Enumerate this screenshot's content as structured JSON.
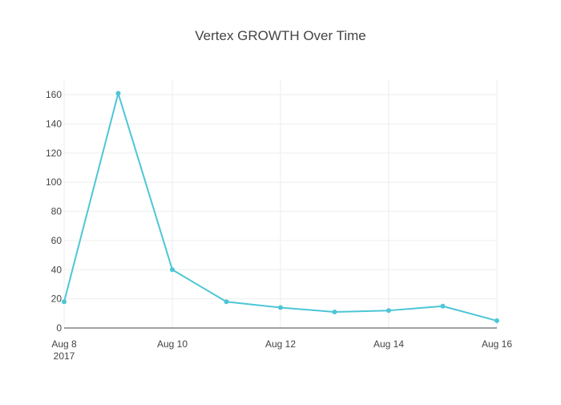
{
  "chart_data": {
    "type": "line",
    "title": "Vertex GROWTH Over Time",
    "xlabel": "",
    "ylabel": "",
    "x": [
      "2017-08-08",
      "2017-08-09",
      "2017-08-10",
      "2017-08-11",
      "2017-08-12",
      "2017-08-13",
      "2017-08-14",
      "2017-08-15",
      "2017-08-16"
    ],
    "series": [
      {
        "values": [
          18,
          161,
          40,
          18,
          14,
          11,
          12,
          15,
          5
        ],
        "color": "#4dc6d6"
      }
    ],
    "xlim": [
      "2017-08-08",
      "2017-08-16"
    ],
    "ylim": [
      0,
      170
    ],
    "x_ticks": [
      {
        "value": "2017-08-08",
        "label": "Aug 8",
        "sublabel": "2017"
      },
      {
        "value": "2017-08-10",
        "label": "Aug 10",
        "sublabel": ""
      },
      {
        "value": "2017-08-12",
        "label": "Aug 12",
        "sublabel": ""
      },
      {
        "value": "2017-08-14",
        "label": "Aug 14",
        "sublabel": ""
      },
      {
        "value": "2017-08-16",
        "label": "Aug 16",
        "sublabel": ""
      }
    ],
    "y_ticks": [
      0,
      20,
      40,
      60,
      80,
      100,
      120,
      140,
      160
    ],
    "grid": true,
    "legend": "none"
  }
}
